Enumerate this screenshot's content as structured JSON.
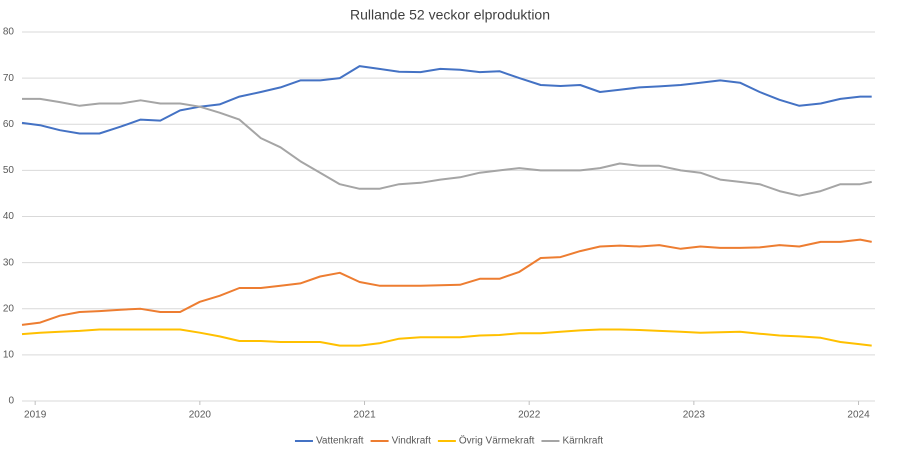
{
  "chart_data": {
    "type": "line",
    "title": "Rullande 52 veckor elproduktion",
    "x": [
      2018.92,
      2019.03,
      2019.15,
      2019.27,
      2019.39,
      2019.52,
      2019.64,
      2019.76,
      2019.88,
      2020.0,
      2020.12,
      2020.24,
      2020.37,
      2020.49,
      2020.61,
      2020.73,
      2020.85,
      2020.97,
      2021.09,
      2021.21,
      2021.34,
      2021.46,
      2021.58,
      2021.7,
      2021.82,
      2021.94,
      2022.07,
      2022.19,
      2022.31,
      2022.43,
      2022.55,
      2022.67,
      2022.79,
      2022.92,
      2023.04,
      2023.16,
      2023.28,
      2023.4,
      2023.52,
      2023.64,
      2023.77,
      2023.89,
      2024.01,
      2024.08
    ],
    "series": [
      {
        "name": "Vattenkraft",
        "color": "#4472c4",
        "values": [
          60.3,
          59.8,
          58.7,
          58,
          58,
          59.5,
          61,
          60.8,
          63,
          63.8,
          64.3,
          66,
          67,
          68,
          69.5,
          69.5,
          70,
          72.6,
          72,
          71.4,
          71.3,
          72,
          71.8,
          71.3,
          71.5,
          70,
          68.5,
          68.3,
          68.5,
          67,
          67.5,
          68,
          68.2,
          68.5,
          69,
          69.5,
          69,
          67,
          65.3,
          64,
          64.5,
          65.5,
          66,
          66
        ]
      },
      {
        "name": "Vindkraft",
        "color": "#ed7d31",
        "values": [
          16.5,
          17,
          18.5,
          19.3,
          19.5,
          19.8,
          20,
          19.3,
          19.3,
          21.5,
          22.8,
          24.5,
          24.5,
          25,
          25.5,
          27,
          27.8,
          25.8,
          25,
          25,
          25,
          25.1,
          25.2,
          26.5,
          26.5,
          28,
          31,
          31.2,
          32.5,
          33.5,
          33.7,
          33.5,
          33.8,
          33,
          33.5,
          33.2,
          33.2,
          33.3,
          33.8,
          33.5,
          34.5,
          34.5,
          35,
          34.5
        ]
      },
      {
        "name": "Övrig Värmekraft",
        "color": "#ffc000",
        "values": [
          14.5,
          14.8,
          15,
          15.2,
          15.5,
          15.5,
          15.5,
          15.5,
          15.5,
          14.8,
          14,
          13,
          13,
          12.8,
          12.8,
          12.8,
          12,
          12,
          12.5,
          13.5,
          13.8,
          13.8,
          13.8,
          14.2,
          14.3,
          14.7,
          14.7,
          15,
          15.3,
          15.5,
          15.5,
          15.4,
          15.2,
          15,
          14.8,
          14.9,
          15,
          14.6,
          14.2,
          14,
          13.7,
          12.8,
          12.3,
          12
        ]
      },
      {
        "name": "Kärnkraft",
        "color": "#a5a5a5",
        "values": [
          65.5,
          65.5,
          64.8,
          64,
          64.5,
          64.5,
          65.2,
          64.5,
          64.5,
          63.8,
          62.5,
          61,
          57,
          55,
          52,
          49.5,
          47,
          46,
          46,
          47,
          47.3,
          48,
          48.5,
          49.5,
          50,
          50.5,
          50,
          50,
          50,
          50.5,
          51.5,
          51,
          51,
          50,
          49.5,
          48,
          47.5,
          47,
          45.5,
          44.5,
          45.5,
          47,
          47,
          47.5
        ]
      }
    ],
    "xlim": [
      2018.92,
      2024.1
    ],
    "xticks": [
      2019,
      2020,
      2021,
      2022,
      2023,
      2024
    ],
    "ylim": [
      0,
      80
    ],
    "yticks": [
      0,
      10,
      20,
      30,
      40,
      50,
      60,
      70,
      80
    ],
    "grid": true,
    "legend": "bottom"
  }
}
